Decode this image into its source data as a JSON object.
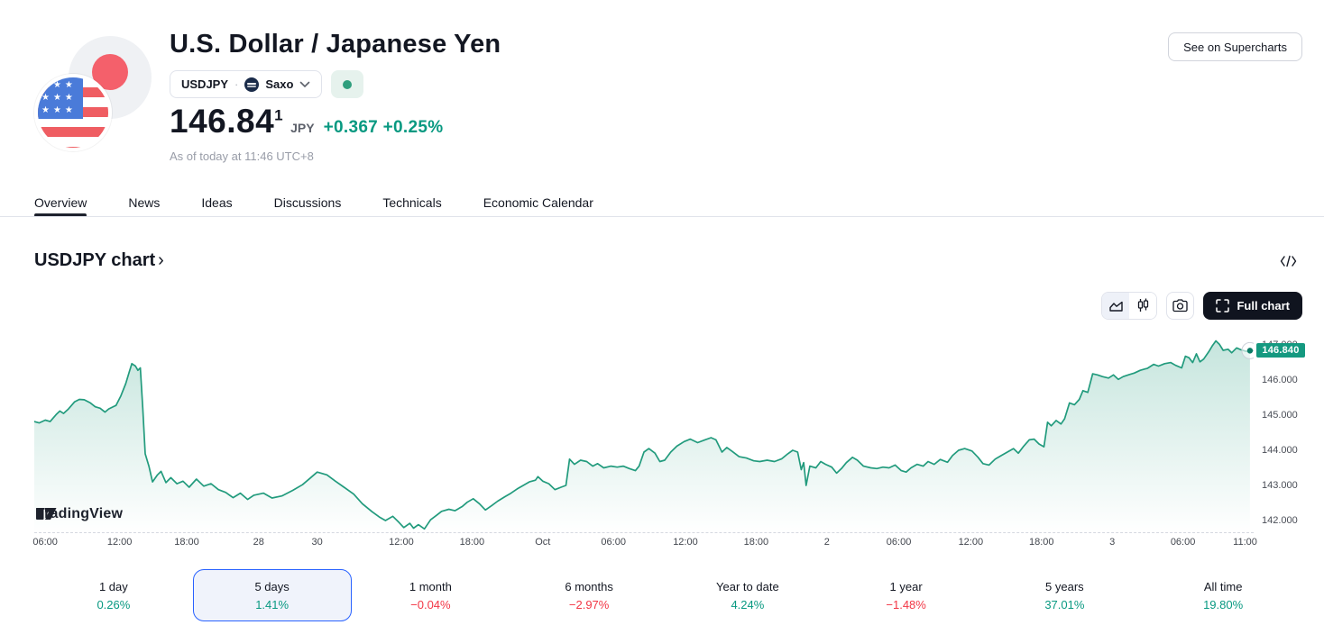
{
  "header": {
    "title": "U.S. Dollar / Japanese Yen",
    "symbol": "USDJPY",
    "separator": "·",
    "exchange": "Saxo",
    "market_status": "open",
    "price": "146.84",
    "price_superscript": "1",
    "currency": "JPY",
    "change_abs": "+0.367",
    "change_pct": "+0.25%",
    "as_of": "As of today at 11:46 UTC+8",
    "supercharts_button": "See on Supercharts"
  },
  "tabs": {
    "items": [
      {
        "label": "Overview",
        "active": true
      },
      {
        "label": "News",
        "active": false
      },
      {
        "label": "Ideas",
        "active": false
      },
      {
        "label": "Discussions",
        "active": false
      },
      {
        "label": "Technicals",
        "active": false
      },
      {
        "label": "Economic Calendar",
        "active": false
      }
    ]
  },
  "chart_section": {
    "heading": "USDJPY chart",
    "heading_chevron": "›",
    "full_chart_label": "Full chart",
    "watermark": "TradingView",
    "price_tag": "146.840"
  },
  "ranges": {
    "items": [
      {
        "label": "1 day",
        "value": "0.26%",
        "direction": "up",
        "selected": false
      },
      {
        "label": "5 days",
        "value": "1.41%",
        "direction": "up",
        "selected": true
      },
      {
        "label": "1 month",
        "value": "−0.04%",
        "direction": "down",
        "selected": false
      },
      {
        "label": "6 months",
        "value": "−2.97%",
        "direction": "down",
        "selected": false
      },
      {
        "label": "Year to date",
        "value": "4.24%",
        "direction": "up",
        "selected": false
      },
      {
        "label": "1 year",
        "value": "−1.48%",
        "direction": "down",
        "selected": false
      },
      {
        "label": "5 years",
        "value": "37.01%",
        "direction": "up",
        "selected": false
      },
      {
        "label": "All time",
        "value": "19.80%",
        "direction": "up",
        "selected": false
      }
    ]
  },
  "colors": {
    "line": "#229b7d",
    "fill_top": "rgba(34,155,125,0.26)",
    "fill_bottom": "rgba(34,155,125,0)",
    "tag_bg": "#159980",
    "green": "#089981",
    "red": "#f23645",
    "selected_border": "#2962ff"
  },
  "chart_data": {
    "type": "area",
    "symbol": "USDJPY",
    "title": "USDJPY chart, 5 days",
    "last_price": 146.84,
    "price_tag": "146.840",
    "ylim": [
      141.64,
      147.44
    ],
    "y_ticks": [
      {
        "value": 147,
        "label": "147.000"
      },
      {
        "value": 146,
        "label": "146.000"
      },
      {
        "value": 145,
        "label": "145.000"
      },
      {
        "value": 144,
        "label": "144.000"
      },
      {
        "value": 143,
        "label": "143.000"
      },
      {
        "value": 142,
        "label": "142.000"
      }
    ],
    "x_ticks": [
      {
        "label": "06:00",
        "pct": 0.9
      },
      {
        "label": "12:00",
        "pct": 7.0
      },
      {
        "label": "18:00",
        "pct": 12.5
      },
      {
        "label": "28",
        "pct": 18.4
      },
      {
        "label": "30",
        "pct": 23.2
      },
      {
        "label": "12:00",
        "pct": 30.1
      },
      {
        "label": "18:00",
        "pct": 35.9
      },
      {
        "label": "Oct",
        "pct": 41.7
      },
      {
        "label": "06:00",
        "pct": 47.5
      },
      {
        "label": "12:00",
        "pct": 53.4
      },
      {
        "label": "18:00",
        "pct": 59.2
      },
      {
        "label": "2",
        "pct": 65.0
      },
      {
        "label": "06:00",
        "pct": 70.9
      },
      {
        "label": "12:00",
        "pct": 76.8
      },
      {
        "label": "18:00",
        "pct": 82.6
      },
      {
        "label": "3",
        "pct": 88.4
      },
      {
        "label": "06:00",
        "pct": 94.2
      },
      {
        "label": "11:00",
        "pct": 99.3
      }
    ],
    "points": [
      [
        0,
        144.82
      ],
      [
        0.4,
        144.78
      ],
      [
        0.9,
        144.86
      ],
      [
        1.3,
        144.82
      ],
      [
        1.8,
        145.02
      ],
      [
        2.1,
        145.12
      ],
      [
        2.4,
        145.05
      ],
      [
        2.8,
        145.18
      ],
      [
        3.3,
        145.38
      ],
      [
        3.7,
        145.45
      ],
      [
        4.1,
        145.44
      ],
      [
        4.6,
        145.35
      ],
      [
        5,
        145.24
      ],
      [
        5.4,
        145.2
      ],
      [
        5.8,
        145.09
      ],
      [
        6.1,
        145.18
      ],
      [
        6.7,
        145.28
      ],
      [
        7.1,
        145.55
      ],
      [
        7.5,
        145.9
      ],
      [
        7.8,
        146.25
      ],
      [
        8,
        146.47
      ],
      [
        8.3,
        146.4
      ],
      [
        8.5,
        146.28
      ],
      [
        8.7,
        146.35
      ],
      [
        8.9,
        145.2
      ],
      [
        9.1,
        143.9
      ],
      [
        9.4,
        143.55
      ],
      [
        9.7,
        143.1
      ],
      [
        10.1,
        143.3
      ],
      [
        10.4,
        143.4
      ],
      [
        10.8,
        143.08
      ],
      [
        11.2,
        143.22
      ],
      [
        11.7,
        143.05
      ],
      [
        12.2,
        143.12
      ],
      [
        12.7,
        142.95
      ],
      [
        13.3,
        143.18
      ],
      [
        13.9,
        142.98
      ],
      [
        14.5,
        143.05
      ],
      [
        15.1,
        142.88
      ],
      [
        15.7,
        142.8
      ],
      [
        16.3,
        142.65
      ],
      [
        16.9,
        142.78
      ],
      [
        17.5,
        142.6
      ],
      [
        18,
        142.72
      ],
      [
        18.8,
        142.78
      ],
      [
        19.5,
        142.64
      ],
      [
        20.3,
        142.7
      ],
      [
        21.2,
        142.86
      ],
      [
        22,
        143.02
      ],
      [
        22.6,
        143.2
      ],
      [
        23.2,
        143.38
      ],
      [
        24,
        143.3
      ],
      [
        24.7,
        143.12
      ],
      [
        25.4,
        142.95
      ],
      [
        26.2,
        142.75
      ],
      [
        26.9,
        142.48
      ],
      [
        27.7,
        142.25
      ],
      [
        28.3,
        142.1
      ],
      [
        28.8,
        142
      ],
      [
        29.4,
        142.12
      ],
      [
        29.9,
        141.95
      ],
      [
        30.3,
        141.8
      ],
      [
        30.8,
        141.92
      ],
      [
        31.1,
        141.78
      ],
      [
        31.5,
        141.88
      ],
      [
        32,
        141.76
      ],
      [
        32.5,
        142.02
      ],
      [
        33,
        142.15
      ],
      [
        33.4,
        142.26
      ],
      [
        34,
        142.32
      ],
      [
        34.5,
        142.28
      ],
      [
        35.1,
        142.4
      ],
      [
        35.5,
        142.52
      ],
      [
        36,
        142.62
      ],
      [
        36.5,
        142.48
      ],
      [
        37,
        142.3
      ],
      [
        37.5,
        142.42
      ],
      [
        38,
        142.55
      ],
      [
        38.6,
        142.68
      ],
      [
        39.1,
        142.78
      ],
      [
        39.6,
        142.9
      ],
      [
        40.1,
        143
      ],
      [
        40.6,
        143.1
      ],
      [
        41.1,
        143.15
      ],
      [
        41.3,
        143.25
      ],
      [
        41.7,
        143.12
      ],
      [
        42.2,
        143.05
      ],
      [
        42.7,
        142.88
      ],
      [
        43.2,
        142.95
      ],
      [
        43.6,
        143
      ],
      [
        43.9,
        143.75
      ],
      [
        44.3,
        143.6
      ],
      [
        44.8,
        143.72
      ],
      [
        45.3,
        143.68
      ],
      [
        45.8,
        143.55
      ],
      [
        46.2,
        143.62
      ],
      [
        46.7,
        143.5
      ],
      [
        47.3,
        143.55
      ],
      [
        47.8,
        143.52
      ],
      [
        48.3,
        143.55
      ],
      [
        48.8,
        143.48
      ],
      [
        49.3,
        143.42
      ],
      [
        49.6,
        143.55
      ],
      [
        50,
        143.95
      ],
      [
        50.4,
        144.05
      ],
      [
        50.9,
        143.92
      ],
      [
        51.3,
        143.68
      ],
      [
        51.7,
        143.72
      ],
      [
        52.2,
        143.95
      ],
      [
        52.7,
        144.12
      ],
      [
        53.3,
        144.25
      ],
      [
        53.8,
        144.32
      ],
      [
        54.4,
        144.22
      ],
      [
        55,
        144.3
      ],
      [
        55.5,
        144.36
      ],
      [
        55.9,
        144.3
      ],
      [
        56.4,
        143.95
      ],
      [
        56.8,
        144.08
      ],
      [
        57.2,
        143.98
      ],
      [
        57.8,
        143.82
      ],
      [
        58.4,
        143.78
      ],
      [
        59,
        143.7
      ],
      [
        59.5,
        143.68
      ],
      [
        60.1,
        143.72
      ],
      [
        60.7,
        143.68
      ],
      [
        61.3,
        143.76
      ],
      [
        61.8,
        143.9
      ],
      [
        62.2,
        144
      ],
      [
        62.6,
        143.95
      ],
      [
        62.9,
        143.45
      ],
      [
        63.1,
        143.65
      ],
      [
        63.3,
        143
      ],
      [
        63.6,
        143.55
      ],
      [
        64.1,
        143.5
      ],
      [
        64.5,
        143.68
      ],
      [
        64.9,
        143.6
      ],
      [
        65.4,
        143.52
      ],
      [
        65.8,
        143.35
      ],
      [
        66.2,
        143.48
      ],
      [
        66.6,
        143.65
      ],
      [
        67.1,
        143.8
      ],
      [
        67.5,
        143.72
      ],
      [
        68,
        143.55
      ],
      [
        68.6,
        143.5
      ],
      [
        69.1,
        143.48
      ],
      [
        69.6,
        143.52
      ],
      [
        70.1,
        143.5
      ],
      [
        70.6,
        143.58
      ],
      [
        71.1,
        143.42
      ],
      [
        71.5,
        143.38
      ],
      [
        71.9,
        143.5
      ],
      [
        72.4,
        143.6
      ],
      [
        72.9,
        143.55
      ],
      [
        73.3,
        143.68
      ],
      [
        73.8,
        143.6
      ],
      [
        74.3,
        143.74
      ],
      [
        74.9,
        143.66
      ],
      [
        75.3,
        143.85
      ],
      [
        75.8,
        144
      ],
      [
        76.3,
        144.05
      ],
      [
        76.9,
        143.98
      ],
      [
        77.4,
        143.8
      ],
      [
        77.8,
        143.62
      ],
      [
        78.3,
        143.58
      ],
      [
        78.8,
        143.75
      ],
      [
        79.3,
        143.85
      ],
      [
        79.8,
        143.95
      ],
      [
        80.3,
        144.05
      ],
      [
        80.7,
        143.92
      ],
      [
        81.1,
        144.1
      ],
      [
        81.6,
        144.3
      ],
      [
        82,
        144.32
      ],
      [
        82.4,
        144.18
      ],
      [
        82.8,
        144.1
      ],
      [
        83.1,
        144.8
      ],
      [
        83.4,
        144.7
      ],
      [
        83.8,
        144.85
      ],
      [
        84.2,
        144.75
      ],
      [
        84.5,
        144.9
      ],
      [
        84.9,
        145.35
      ],
      [
        85.3,
        145.3
      ],
      [
        85.7,
        145.45
      ],
      [
        86,
        145.7
      ],
      [
        86.4,
        145.65
      ],
      [
        86.8,
        146.18
      ],
      [
        87.2,
        146.15
      ],
      [
        87.6,
        146.1
      ],
      [
        88.1,
        146.06
      ],
      [
        88.5,
        146.15
      ],
      [
        88.9,
        146.02
      ],
      [
        89.3,
        146.1
      ],
      [
        89.8,
        146.16
      ],
      [
        90.2,
        146.2
      ],
      [
        90.7,
        146.28
      ],
      [
        91.3,
        146.34
      ],
      [
        91.8,
        146.45
      ],
      [
        92.2,
        146.4
      ],
      [
        92.7,
        146.47
      ],
      [
        93.2,
        146.5
      ],
      [
        93.6,
        146.42
      ],
      [
        94.1,
        146.35
      ],
      [
        94.4,
        146.68
      ],
      [
        94.7,
        146.64
      ],
      [
        95,
        146.5
      ],
      [
        95.3,
        146.75
      ],
      [
        95.6,
        146.52
      ],
      [
        95.9,
        146.6
      ],
      [
        96.3,
        146.8
      ],
      [
        96.6,
        146.97
      ],
      [
        96.9,
        147.12
      ],
      [
        97.2,
        147.02
      ],
      [
        97.5,
        146.85
      ],
      [
        97.9,
        146.88
      ],
      [
        98.2,
        146.78
      ],
      [
        98.6,
        146.92
      ],
      [
        99,
        146.86
      ],
      [
        99.4,
        146.82
      ],
      [
        99.7,
        146.84
      ]
    ]
  }
}
